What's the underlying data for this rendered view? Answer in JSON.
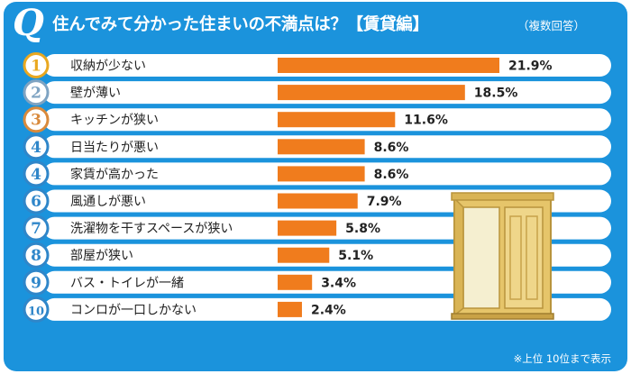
{
  "header": {
    "q_mark": "Q",
    "title": "住んでみて分かった住まいの不満点は？【賃貸編】",
    "subtitle": "（複数回答）"
  },
  "footnote": "※上位 10位まで表示",
  "colors": {
    "frame": "#1b93dc",
    "bar": "#f07c1d",
    "row": "#ffffff",
    "rank_badge": "#2f86c9",
    "gold": "#e9a820",
    "silver": "#7ea3c2",
    "bronze": "#d98a3c"
  },
  "chart_data": {
    "type": "bar",
    "orientation": "horizontal",
    "title": "住んでみて分かった住まいの不満点は？【賃貸編】",
    "unit": "%",
    "ranks": [
      "1",
      "2",
      "3",
      "4",
      "4",
      "6",
      "7",
      "8",
      "9",
      "10"
    ],
    "categories": [
      "収納が少ない",
      "壁が薄い",
      "キッチンが狭い",
      "日当たりが悪い",
      "家賃が高かった",
      "風通しが悪い",
      "洗濯物を干すスペースが狭い",
      "部屋が狭い",
      "バス・トイレが一緒",
      "コンロが一口しかない"
    ],
    "values": [
      21.9,
      18.5,
      11.6,
      8.6,
      8.6,
      7.9,
      5.8,
      5.1,
      3.4,
      2.4
    ],
    "value_labels": [
      "21.9%",
      "18.5%",
      "11.6%",
      "8.6%",
      "8.6%",
      "7.9%",
      "5.8%",
      "5.1%",
      "3.4%",
      "2.4%"
    ]
  }
}
